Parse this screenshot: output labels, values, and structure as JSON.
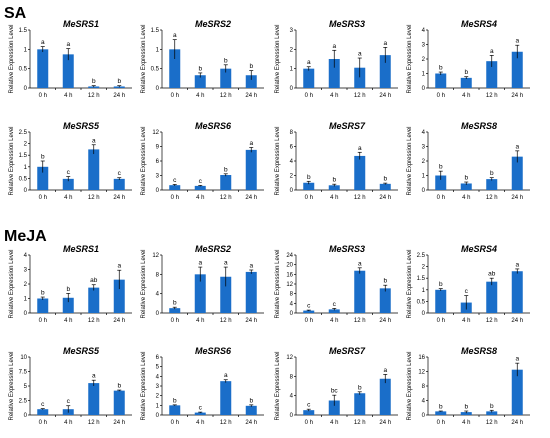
{
  "sections": [
    {
      "label": "SA",
      "panels_start": 0,
      "panels_end": 8
    },
    {
      "label": "MeJA",
      "panels_start": 8,
      "panels_end": 16
    }
  ],
  "ylabel": "Relative Expression Level",
  "categories": [
    "0 h",
    "4 h",
    "12 h",
    "24 h"
  ],
  "colors": {
    "bar": "#1a6ec9"
  },
  "chart_data": [
    {
      "type": "bar",
      "title": "MeSRS1",
      "ylabel": "Relative Expression Level",
      "categories": [
        "0 h",
        "4 h",
        "12 h",
        "24 h"
      ],
      "ylim": [
        0,
        1.5
      ],
      "yticks": [
        "0",
        "0.5",
        "1",
        "1.5"
      ],
      "values": [
        1.0,
        0.87,
        0.04,
        0.04
      ],
      "errors": [
        0.07,
        0.15,
        0.02,
        0.02
      ],
      "letters": [
        "a",
        "a",
        "b",
        "b"
      ]
    },
    {
      "type": "bar",
      "title": "MeSRS2",
      "ylabel": "Relative Expression Level",
      "categories": [
        "0 h",
        "4 h",
        "12 h",
        "24 h"
      ],
      "ylim": [
        0,
        1.5
      ],
      "yticks": [
        "0",
        "0.5",
        "1",
        "1.5"
      ],
      "values": [
        1.0,
        0.33,
        0.5,
        0.33
      ],
      "errors": [
        0.25,
        0.06,
        0.1,
        0.12
      ],
      "letters": [
        "a",
        "b",
        "b",
        "b"
      ]
    },
    {
      "type": "bar",
      "title": "MeSRS3",
      "ylabel": "Relative Expression Level",
      "categories": [
        "0 h",
        "4 h",
        "12 h",
        "24 h"
      ],
      "ylim": [
        0,
        3
      ],
      "yticks": [
        "0",
        "1",
        "2",
        "3"
      ],
      "values": [
        1.0,
        1.5,
        1.05,
        1.7
      ],
      "errors": [
        0.1,
        0.45,
        0.5,
        0.4
      ],
      "letters": [
        "a",
        "a",
        "a",
        "a"
      ]
    },
    {
      "type": "bar",
      "title": "MeSRS4",
      "ylabel": "Relative Expression Level",
      "categories": [
        "0 h",
        "4 h",
        "12 h",
        "24 h"
      ],
      "ylim": [
        0,
        4
      ],
      "yticks": [
        "0",
        "1",
        "2",
        "3",
        "4"
      ],
      "values": [
        1.0,
        0.7,
        1.85,
        2.5
      ],
      "errors": [
        0.1,
        0.08,
        0.4,
        0.45
      ],
      "letters": [
        "b",
        "b",
        "a",
        "a"
      ]
    },
    {
      "type": "bar",
      "title": "MeSRS5",
      "ylabel": "Relative Expression Level",
      "categories": [
        "0 h",
        "4 h",
        "12 h",
        "24 h"
      ],
      "ylim": [
        0,
        2.5
      ],
      "yticks": [
        "0",
        "0.5",
        "1",
        "1.5",
        "2",
        "2.5"
      ],
      "values": [
        1.0,
        0.48,
        1.75,
        0.48
      ],
      "errors": [
        0.25,
        0.1,
        0.2,
        0.05
      ],
      "letters": [
        "b",
        "c",
        "a",
        "c"
      ]
    },
    {
      "type": "bar",
      "title": "MeSRS6",
      "ylabel": "Relative Expression Level",
      "categories": [
        "0 h",
        "4 h",
        "12 h",
        "24 h"
      ],
      "ylim": [
        0,
        12
      ],
      "yticks": [
        "0",
        "3",
        "6",
        "9",
        "12"
      ],
      "values": [
        1.0,
        0.85,
        3.1,
        8.3
      ],
      "errors": [
        0.15,
        0.1,
        0.25,
        0.5
      ],
      "letters": [
        "c",
        "c",
        "b",
        "a"
      ]
    },
    {
      "type": "bar",
      "title": "MeSRS7",
      "ylabel": "Relative Expression Level",
      "categories": [
        "0 h",
        "4 h",
        "12 h",
        "24 h"
      ],
      "ylim": [
        0,
        8
      ],
      "yticks": [
        "0",
        "2",
        "4",
        "6",
        "8"
      ],
      "values": [
        1.0,
        0.65,
        4.7,
        0.85
      ],
      "errors": [
        0.2,
        0.15,
        0.5,
        0.1
      ],
      "letters": [
        "b",
        "b",
        "a",
        "b"
      ]
    },
    {
      "type": "bar",
      "title": "MeSRS8",
      "ylabel": "Relative Expression Level",
      "categories": [
        "0 h",
        "4 h",
        "12 h",
        "24 h"
      ],
      "ylim": [
        0,
        4
      ],
      "yticks": [
        "0",
        "1",
        "2",
        "3",
        "4"
      ],
      "values": [
        1.0,
        0.45,
        0.75,
        2.3
      ],
      "errors": [
        0.3,
        0.1,
        0.1,
        0.4
      ],
      "letters": [
        "b",
        "b",
        "b",
        "a"
      ]
    },
    {
      "type": "bar",
      "title": "MeSRS1",
      "ylabel": "Relative Expression Level",
      "categories": [
        "0 h",
        "4 h",
        "12 h",
        "24 h"
      ],
      "ylim": [
        0,
        4
      ],
      "yticks": [
        "0",
        "1",
        "2",
        "3",
        "4"
      ],
      "values": [
        1.0,
        1.05,
        1.75,
        2.3
      ],
      "errors": [
        0.1,
        0.3,
        0.2,
        0.65
      ],
      "letters": [
        "b",
        "b",
        "ab",
        "a"
      ]
    },
    {
      "type": "bar",
      "title": "MeSRS2",
      "ylabel": "Relative Expression Level",
      "categories": [
        "0 h",
        "4 h",
        "12 h",
        "24 h"
      ],
      "ylim": [
        0,
        12
      ],
      "yticks": [
        "0",
        "4",
        "8",
        "12"
      ],
      "values": [
        1.0,
        8.0,
        7.5,
        8.5
      ],
      "errors": [
        0.2,
        1.5,
        2.0,
        0.4
      ],
      "letters": [
        "b",
        "a",
        "a",
        "a"
      ]
    },
    {
      "type": "bar",
      "title": "MeSRS3",
      "ylabel": "Relative Expression Level",
      "categories": [
        "0 h",
        "4 h",
        "12 h",
        "24 h"
      ],
      "ylim": [
        0,
        24
      ],
      "yticks": [
        "0",
        "4",
        "8",
        "12",
        "16",
        "20",
        "24"
      ],
      "values": [
        1.0,
        1.5,
        17.5,
        10.2
      ],
      "errors": [
        0.2,
        0.4,
        1.2,
        1.3
      ],
      "letters": [
        "c",
        "c",
        "a",
        "b"
      ]
    },
    {
      "type": "bar",
      "title": "MeSRS4",
      "ylabel": "Relative Expression Level",
      "categories": [
        "0 h",
        "4 h",
        "12 h",
        "24 h"
      ],
      "ylim": [
        0,
        2.5
      ],
      "yticks": [
        "0",
        "0.5",
        "1",
        "1.5",
        "2",
        "2.5"
      ],
      "values": [
        1.0,
        0.45,
        1.35,
        1.8
      ],
      "errors": [
        0.05,
        0.3,
        0.15,
        0.1
      ],
      "letters": [
        "b",
        "c",
        "ab",
        "a"
      ]
    },
    {
      "type": "bar",
      "title": "MeSRS5",
      "ylabel": "Relative Expression Level",
      "categories": [
        "0 h",
        "4 h",
        "12 h",
        "24 h"
      ],
      "ylim": [
        0,
        10
      ],
      "yticks": [
        "0",
        "2.5",
        "5",
        "7.5",
        "10"
      ],
      "values": [
        1.0,
        1.0,
        5.5,
        4.2
      ],
      "errors": [
        0.1,
        0.6,
        0.5,
        0.1
      ],
      "letters": [
        "c",
        "c",
        "a",
        "b"
      ]
    },
    {
      "type": "bar",
      "title": "MeSRS6",
      "ylabel": "Relative Expression Level",
      "categories": [
        "0 h",
        "4 h",
        "12 h",
        "24 h"
      ],
      "ylim": [
        0,
        6
      ],
      "yticks": [
        "0",
        "1",
        "2",
        "3",
        "4",
        "5",
        "6"
      ],
      "values": [
        1.0,
        0.25,
        3.5,
        0.95
      ],
      "errors": [
        0.05,
        0.05,
        0.15,
        0.1
      ],
      "letters": [
        "b",
        "c",
        "a",
        "b"
      ]
    },
    {
      "type": "bar",
      "title": "MeSRS7",
      "ylabel": "Relative Expression Level",
      "categories": [
        "0 h",
        "4 h",
        "12 h",
        "24 h"
      ],
      "ylim": [
        0,
        12
      ],
      "yticks": [
        "0",
        "4",
        "8",
        "12"
      ],
      "values": [
        1.0,
        3.0,
        4.5,
        7.5
      ],
      "errors": [
        0.2,
        1.1,
        0.3,
        0.9
      ],
      "letters": [
        "c",
        "bc",
        "b",
        "a"
      ]
    },
    {
      "type": "bar",
      "title": "MeSRS8",
      "ylabel": "Relative Expression Level",
      "categories": [
        "0 h",
        "4 h",
        "12 h",
        "24 h"
      ],
      "ylim": [
        0,
        16
      ],
      "yticks": [
        "0",
        "4",
        "8",
        "12",
        "16"
      ],
      "values": [
        1.0,
        0.8,
        1.0,
        12.5
      ],
      "errors": [
        0.1,
        0.3,
        0.3,
        1.8
      ],
      "letters": [
        "b",
        "b",
        "b",
        "a"
      ]
    }
  ]
}
